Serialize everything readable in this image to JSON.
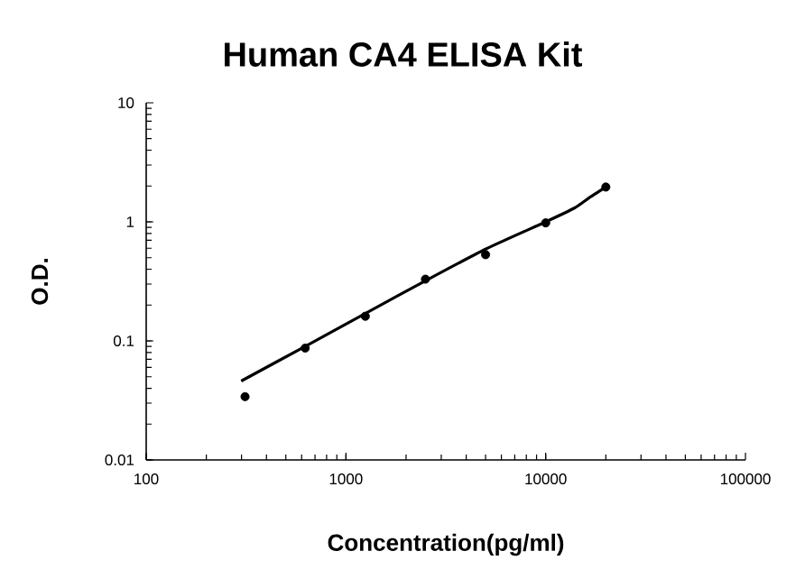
{
  "chart_data": {
    "type": "scatter",
    "title": "Human CA4 ELISA Kit",
    "xlabel": "Concentration(pg/ml)",
    "ylabel": "O.D.",
    "log": "xy",
    "xlim": [
      100,
      100000
    ],
    "ylim": [
      0.01,
      10
    ],
    "xticks": [
      100,
      1000,
      10000,
      100000
    ],
    "yticks": [
      0.01,
      0.1,
      1,
      10
    ],
    "series": [
      {
        "color": "#000000",
        "marker": "circle",
        "x": [
          312.5,
          625,
          1250,
          2500,
          5000,
          10000,
          20000
        ],
        "values": [
          0.034,
          0.087,
          0.161,
          0.33,
          0.53,
          0.98,
          1.96
        ]
      },
      {
        "type": "line",
        "color": "#000000",
        "marker": "none",
        "line_style": "solid",
        "x": [
          299,
          625,
          1250,
          2500,
          5000,
          10000,
          13970,
          16480,
          20000
        ],
        "values": [
          0.046,
          0.09,
          0.17,
          0.32,
          0.59,
          1.0,
          1.31,
          1.59,
          1.96
        ]
      }
    ]
  }
}
